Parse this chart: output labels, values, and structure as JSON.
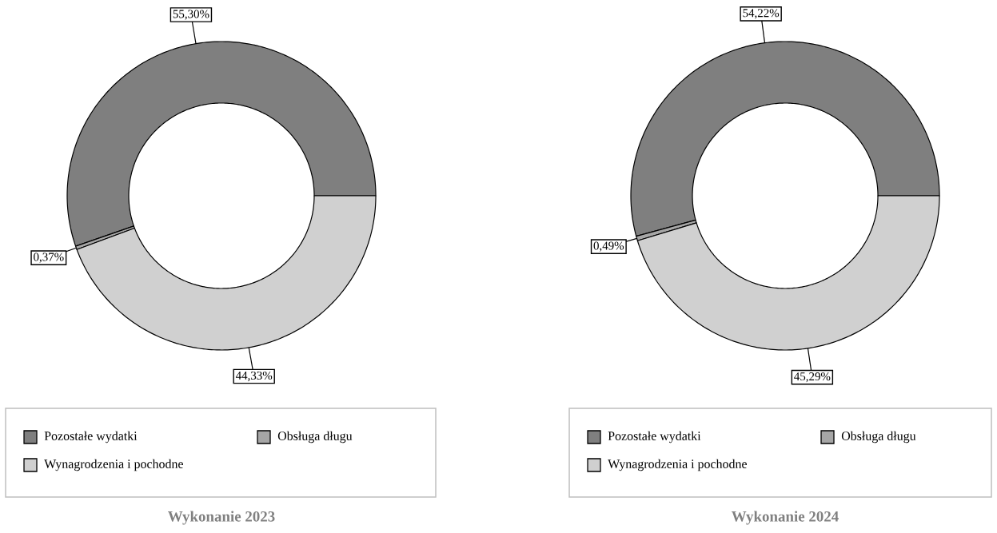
{
  "chart_data": [
    {
      "type": "donut",
      "title": "Wykonanie 2023",
      "categories": [
        "Pozostałe wydatki",
        "Obsługa długu",
        "Wynagrodzenia i pochodne"
      ],
      "values": [
        55.3,
        0.37,
        44.33
      ],
      "value_labels": [
        "55,30%",
        "0,37%",
        "44,33%"
      ],
      "colors": [
        "#7f7f7f",
        "#a6a6a6",
        "#d0d0d0"
      ],
      "legend": "bottom"
    },
    {
      "type": "donut",
      "title": "Wykonanie 2024",
      "categories": [
        "Pozostałe wydatki",
        "Obsługa długu",
        "Wynagrodzenia i pochodne"
      ],
      "values": [
        54.22,
        0.49,
        45.29
      ],
      "value_labels": [
        "54,22%",
        "0,49%",
        "45,29%"
      ],
      "colors": [
        "#7f7f7f",
        "#a6a6a6",
        "#d0d0d0"
      ],
      "legend": "bottom"
    }
  ]
}
